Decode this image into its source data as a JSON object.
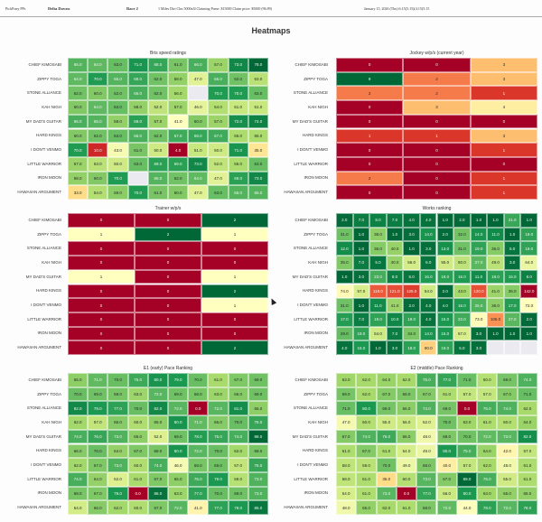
{
  "header": {
    "app_name": "PickPony PPs",
    "track": "Delta Downs",
    "race": "Race 2",
    "race_info": "1 Miles Dirt Clm 5000n3l Claiming Purse: $15000 Claim price: $5000 (96.89)",
    "date": "January 15, 2026 (Thu) 6:15(5:15)(4:15(5:15"
  },
  "page_title": "Heatmaps",
  "horses": [
    "CHIEF KIMOSABI",
    "ZIPPY TOGA",
    "STONE ALLIANCE",
    "KAH NIGH",
    "MY DAD'S GUITAR",
    "HARD KINGS",
    "I DON'T VENMO",
    "LITTLE WARRIOR",
    "IRON MOON",
    "HAWAIIAN ARGUMENT"
  ],
  "chart_data": [
    {
      "id": "bris-speed",
      "type": "heatmap",
      "title": "Bris speed ratings",
      "colormap": "RdYlGn",
      "higher_is_better": true,
      "format": "decimal",
      "values": [
        [
          65,
          64,
          63,
          71,
          68,
          61,
          66,
          57,
          73,
          78
        ],
        [
          64,
          70,
          65,
          68,
          62,
          58,
          47,
          66,
          62,
          53
        ],
        [
          62,
          60,
          62,
          66,
          62,
          56,
          null,
          70,
          70,
          63
        ],
        [
          60,
          64,
          63,
          58,
          52,
          57,
          46,
          54,
          51,
          51
        ],
        [
          66,
          65,
          58,
          69,
          57,
          41,
          60,
          57,
          72,
          74
        ],
        [
          60,
          62,
          63,
          66,
          62,
          67,
          68,
          67,
          55,
          55
        ],
        [
          70,
          10,
          43,
          61,
          50,
          4,
          51,
          50,
          71,
          35
        ],
        [
          57,
          53,
          50,
          63,
          69,
          69,
          73,
          52,
          55,
          63
        ],
        [
          58,
          60,
          70,
          null,
          65,
          62,
          64,
          47,
          69,
          73
        ],
        [
          33,
          54,
          59,
          70,
          61,
          60,
          47,
          63,
          65,
          65
        ]
      ]
    },
    {
      "id": "jockey",
      "type": "heatmap",
      "title": "Jockey w/p/s (current year)",
      "colormap": "RdYlGn",
      "higher_is_better": true,
      "format": "integer",
      "values": [
        [
          0,
          0,
          3
        ],
        [
          9,
          2,
          3
        ],
        [
          2,
          2,
          1
        ],
        [
          0,
          3,
          4
        ],
        [
          0,
          0,
          0
        ],
        [
          1,
          1,
          3
        ],
        [
          0,
          0,
          1
        ],
        [
          0,
          0,
          0
        ],
        [
          2,
          0,
          1
        ],
        [
          0,
          0,
          1
        ]
      ]
    },
    {
      "id": "trainer",
      "type": "heatmap",
      "title": "Trainer w/p/s",
      "colormap": "RdYlGn",
      "higher_is_better": true,
      "format": "integer",
      "values": [
        [
          0,
          0,
          2
        ],
        [
          1,
          2,
          1
        ],
        [
          0,
          0,
          0
        ],
        [
          0,
          0,
          0
        ],
        [
          1,
          0,
          1
        ],
        [
          0,
          0,
          2
        ],
        [
          0,
          0,
          1
        ],
        [
          0,
          0,
          0
        ],
        [
          0,
          0,
          0
        ],
        [
          0,
          0,
          2
        ]
      ]
    },
    {
      "id": "works",
      "type": "heatmap",
      "title": "Works ranking",
      "colormap": "RdYlGn_r",
      "higher_is_better": false,
      "format": "decimal",
      "values": [
        [
          2,
          7,
          8,
          7,
          4,
          4,
          1,
          2,
          1,
          1,
          21,
          1
        ],
        [
          31,
          1,
          38,
          1,
          3,
          14,
          2,
          32,
          14,
          11,
          1,
          19
        ],
        [
          12,
          1,
          36,
          40,
          1,
          3,
          13,
          31,
          19,
          36,
          5,
          19
        ],
        [
          35,
          7,
          5,
          40,
          56,
          5,
          55,
          50,
          27,
          49,
          3,
          64
        ],
        [
          1,
          3,
          23,
          8,
          5,
          16,
          18,
          16,
          11,
          18,
          16,
          8
        ],
        [
          74,
          57,
          118,
          121,
          125,
          54,
          2,
          43,
          120,
          41,
          36,
          142
        ],
        [
          31,
          1,
          11,
          41,
          2,
          4,
          4,
          16,
          25,
          38,
          17,
          72
        ],
        [
          17,
          7,
          19,
          10,
          19,
          4,
          15,
          22,
          73,
          106,
          27,
          2
        ],
        [
          29,
          19,
          54,
          7,
          34,
          14,
          15,
          57,
          3,
          1,
          1,
          1
        ],
        [
          4,
          15,
          1,
          3,
          18,
          90,
          19,
          5,
          3,
          null,
          null,
          null
        ]
      ]
    },
    {
      "id": "e1-pace",
      "type": "heatmap",
      "title": "E1 (early) Pace Ranking",
      "colormap": "RdYlGn",
      "higher_is_better": true,
      "format": "decimal",
      "values": [
        [
          65,
          71,
          70,
          75,
          80,
          79,
          70,
          61,
          67,
          69
        ],
        [
          70,
          69,
          68,
          63,
          72,
          69,
          68,
          63,
          66,
          69
        ],
        [
          82,
          79,
          77,
          70,
          82,
          72,
          0,
          72,
          81,
          65
        ],
        [
          62,
          57,
          66,
          60,
          65,
          80,
          71,
          66,
          70,
          76
        ],
        [
          74,
          76,
          73,
          65,
          52,
          69,
          78,
          76,
          74,
          88
        ],
        [
          66,
          70,
          64,
          67,
          68,
          80,
          72,
          70,
          62,
          68
        ],
        [
          62,
          67,
          73,
          60,
          74,
          46,
          68,
          69,
          57,
          76
        ],
        [
          74,
          64,
          52,
          61,
          67,
          65,
          75,
          79,
          59,
          73
        ],
        [
          68,
          67,
          79,
          0,
          86,
          63,
          77,
          70,
          69,
          73
        ],
        [
          54,
          66,
          62,
          60,
          67,
          72,
          41,
          77,
          79,
          85
        ]
      ]
    },
    {
      "id": "e2-pace",
      "type": "heatmap",
      "title": "E2 (middle) Pace Ranking",
      "colormap": "RdYlGn",
      "higher_is_better": true,
      "format": "decimal",
      "values": [
        [
          63,
          62,
          64,
          62,
          75,
          77,
          71,
          60,
          69,
          74
        ],
        [
          69,
          62,
          67,
          68,
          67,
          61,
          57,
          57,
          67,
          71
        ],
        [
          71,
          80,
          69,
          66,
          74,
          69,
          0,
          75,
          74,
          62
        ],
        [
          47,
          60,
          55,
          56,
          52,
          70,
          63,
          61,
          60,
          64
        ],
        [
          67,
          74,
          76,
          66,
          48,
          68,
          70,
          72,
          73,
          82
        ],
        [
          61,
          67,
          61,
          54,
          49,
          80,
          75,
          64,
          42,
          57
        ],
        [
          58,
          59,
          70,
          49,
          68,
          40,
          57,
          62,
          48,
          61
        ],
        [
          58,
          61,
          35,
          60,
          73,
          67,
          89,
          75,
          55,
          61
        ],
        [
          54,
          61,
          73,
          0,
          77,
          56,
          80,
          63,
          65,
          65
        ],
        [
          48,
          65,
          62,
          61,
          68,
          72,
          44,
          78,
          73,
          78
        ]
      ]
    }
  ]
}
